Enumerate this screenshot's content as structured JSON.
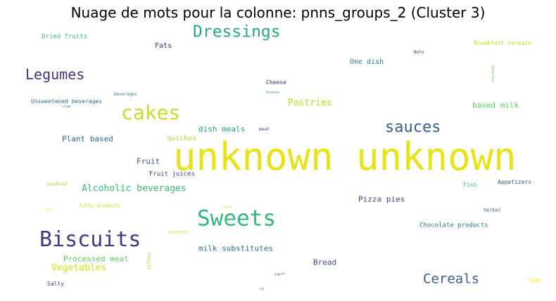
{
  "title": "Nuage de mots pour la colonne: pnns_groups_2 (Cluster 3)",
  "words": [
    {
      "text": "unknown unknown",
      "color": "#e8e219"
    },
    {
      "text": "Dressings",
      "color": "#2ba88a"
    },
    {
      "text": "Legumes",
      "color": "#46337e"
    },
    {
      "text": "cakes",
      "color": "#c8dc2a"
    },
    {
      "text": "sauces",
      "color": "#3a5d8c"
    },
    {
      "text": "Biscuits",
      "color": "#443983"
    },
    {
      "text": "Sweets",
      "color": "#35b779"
    },
    {
      "text": "Cereals",
      "color": "#3e5f8e"
    },
    {
      "text": "Pastries",
      "color": "#b5de2b"
    },
    {
      "text": "Alcoholic beverages",
      "color": "#3aba76"
    },
    {
      "text": "Vegetables",
      "color": "#d2e21b"
    },
    {
      "text": "Processed meat",
      "color": "#5cc863"
    },
    {
      "text": "milk substitutes",
      "color": "#2e6f8e"
    },
    {
      "text": "Plant based",
      "color": "#35608d"
    },
    {
      "text": "dish meals",
      "color": "#1f9e89"
    },
    {
      "text": "Pizza pies",
      "color": "#404588"
    },
    {
      "text": "based milk",
      "color": "#5ec962"
    },
    {
      "text": "One dish",
      "color": "#29788e"
    },
    {
      "text": "quiches",
      "color": "#aadc32"
    },
    {
      "text": "Fruit",
      "color": "#3b528b"
    },
    {
      "text": "Bread",
      "color": "#3e4a89"
    },
    {
      "text": "Fats",
      "color": "#472d7b"
    },
    {
      "text": "Fruit juices",
      "color": "#414487"
    },
    {
      "text": "Chocolate products",
      "color": "#2c728e"
    },
    {
      "text": "Dried fruits",
      "color": "#3aba76"
    },
    {
      "text": "Breakfast cereals",
      "color": "#c2df23"
    },
    {
      "text": "Unsweetened beverages",
      "color": "#31688e"
    },
    {
      "text": "Cheese",
      "color": "#482576"
    },
    {
      "text": "Fish",
      "color": "#44bf70"
    },
    {
      "text": "Appetizers",
      "color": "#3b528b"
    },
    {
      "text": "seafood",
      "color": "#9fda3a"
    },
    {
      "text": "fatty products",
      "color": "#bddf26"
    },
    {
      "text": "herbal",
      "color": "#355f8d"
    },
    {
      "text": "Salty",
      "color": "#3e4989"
    },
    {
      "text": "Teas",
      "color": "#fde725"
    },
    {
      "text": "beverages",
      "color": "#2a788e"
    },
    {
      "text": "meat",
      "color": "#46327e"
    },
    {
      "text": "Nuts",
      "color": "#481f70"
    },
    {
      "text": "Sweetened",
      "color": "#cae11f"
    },
    {
      "text": "coffees",
      "color": "#a0da39"
    },
    {
      "text": "cream",
      "color": "#287c8e"
    },
    {
      "text": "Potatoes",
      "color": "#25858e"
    },
    {
      "text": "Sandwiches",
      "color": "#4ac16d"
    },
    {
      "text": "fish",
      "color": "#dfe318"
    },
    {
      "text": "Soups",
      "color": "#c0df25"
    },
    {
      "text": "yogurt",
      "color": "#3d4e8a"
    },
    {
      "text": "ice",
      "color": "#365c8d"
    }
  ]
}
